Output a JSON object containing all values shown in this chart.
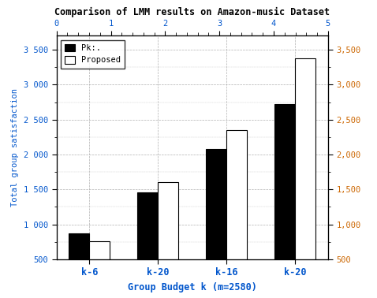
{
  "title": "Comparison of LMM results on Amazon-music Dataset",
  "categories": [
    "k-6",
    "k-20",
    "k-16",
    "k-20"
  ],
  "pk_values": [
    875,
    1460,
    2075,
    2720
  ],
  "proposed_values": [
    760,
    1610,
    2350,
    3380
  ],
  "bar_width": 0.3,
  "ylim": [
    500,
    3700
  ],
  "yticks_left": [
    500,
    1000,
    1500,
    2000,
    2500,
    3000,
    3500
  ],
  "ytick_labels_left": [
    "500",
    "1 000",
    "1 500",
    "2 000",
    "2 500",
    "3 000",
    "3 500"
  ],
  "ytick_labels_right": [
    "500",
    "1,000",
    "1,500",
    "2,000",
    "2,500",
    "3,000",
    "3,500"
  ],
  "xlabel": "Group Budget k (m=2580)",
  "ylabel": "Total group satisfaction",
  "top_xticks": [
    0,
    1,
    2,
    3,
    4,
    5
  ],
  "legend_labels": [
    "Pk:.",
    "Proposed"
  ],
  "pk_color": "#000000",
  "proposed_color": "#ffffff",
  "grid_color": "#b0b0b0",
  "axis_label_color": "#0055cc",
  "tick_label_color_left": "#0055cc",
  "tick_label_color_right": "#cc6600",
  "title_color": "#000000",
  "background_color": "#ffffff",
  "edge_color": "#000000"
}
